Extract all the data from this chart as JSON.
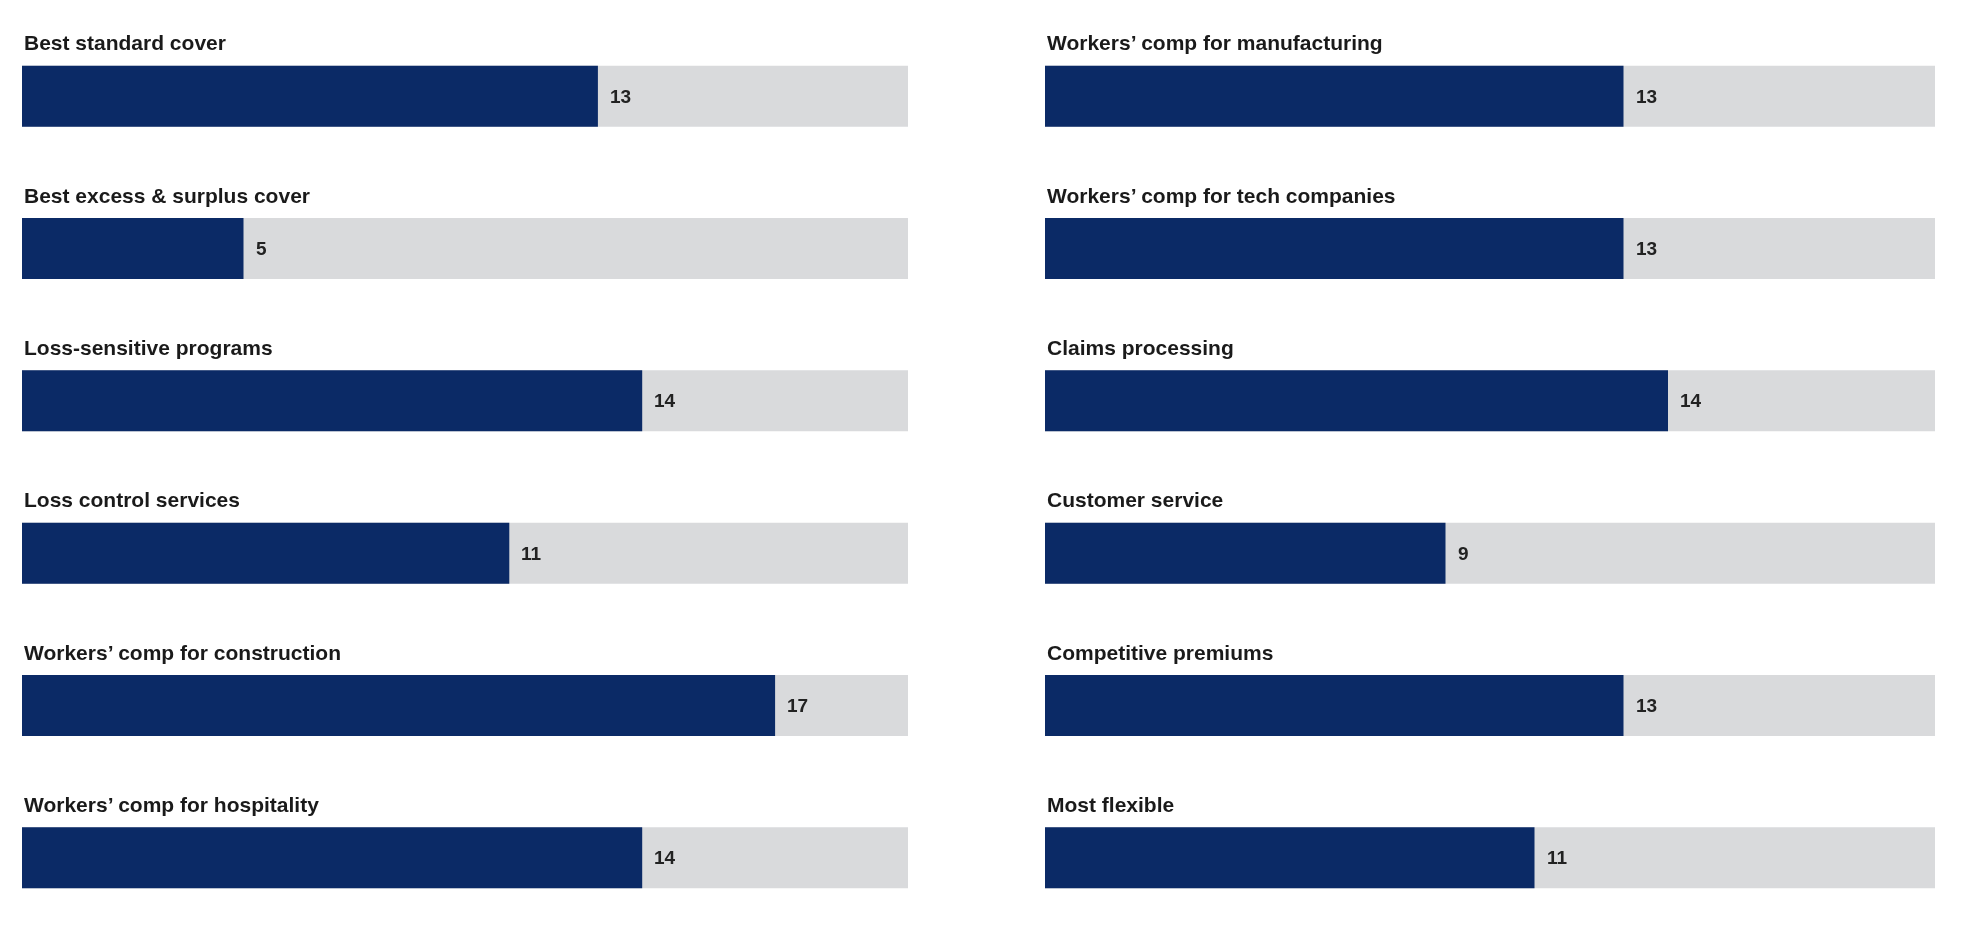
{
  "chart_data": [
    {
      "type": "bar",
      "orientation": "horizontal",
      "categories": [
        "Best standard cover",
        "Best excess & surplus cover",
        "Loss-sensitive programs",
        "Loss control services",
        "Workers’ comp for construction",
        "Workers’ comp for hospitality"
      ],
      "values": [
        13,
        5,
        14,
        11,
        17,
        14
      ],
      "value_labels": [
        "13",
        "5",
        "14",
        "11",
        "17",
        "14"
      ],
      "color": "#0b2a66",
      "xlim": [
        0,
        20
      ],
      "tick_labels": "y"
    },
    {
      "type": "bar",
      "orientation": "horizontal",
      "categories": [
        "Workers’ comp for manufacturing",
        "Workers’ comp for tech companies",
        "Claims processing",
        "Customer service",
        "Competitive premiums",
        "Most flexible"
      ],
      "values": [
        13,
        13,
        14,
        9,
        13,
        11
      ],
      "value_labels": [
        "13",
        "13",
        "14",
        "9",
        "13",
        "11"
      ],
      "color": "#0b2a66",
      "xlim": [
        0,
        20
      ],
      "tick_labels": "y"
    }
  ]
}
